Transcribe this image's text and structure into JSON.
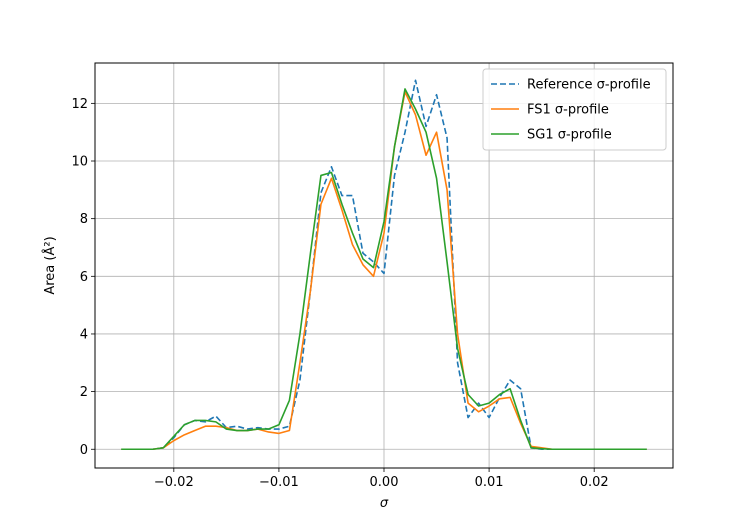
{
  "chart_data": {
    "type": "line",
    "title": "",
    "xlabel": "σ",
    "ylabel": "Area (Å²)",
    "xlim": [
      -0.0275,
      0.0275
    ],
    "ylim": [
      -0.65,
      13.4
    ],
    "grid": true,
    "legend_position": "top-right",
    "x_ticks": [
      -0.02,
      -0.01,
      0.0,
      0.01,
      0.02
    ],
    "x_tick_labels": [
      "−0.02",
      "−0.01",
      "0.00",
      "0.01",
      "0.02"
    ],
    "y_ticks": [
      0,
      2,
      4,
      6,
      8,
      10,
      12
    ],
    "y_tick_labels": [
      "0",
      "2",
      "4",
      "6",
      "8",
      "10",
      "12"
    ],
    "series": [
      {
        "name": "Reference σ-profile",
        "color": "#1f77b4",
        "style": "dashed",
        "x": [
          -0.025,
          -0.024,
          -0.023,
          -0.022,
          -0.021,
          -0.02,
          -0.019,
          -0.018,
          -0.017,
          -0.016,
          -0.015,
          -0.014,
          -0.013,
          -0.012,
          -0.011,
          -0.01,
          -0.009,
          -0.008,
          -0.007,
          -0.006,
          -0.005,
          -0.004,
          -0.003,
          -0.002,
          -0.001,
          0.0,
          0.001,
          0.002,
          0.003,
          0.004,
          0.005,
          0.006,
          0.007,
          0.008,
          0.009,
          0.01,
          0.011,
          0.012,
          0.013,
          0.014,
          0.015,
          0.016,
          0.017,
          0.018,
          0.019,
          0.02,
          0.021,
          0.022,
          0.023,
          0.024,
          0.025
        ],
        "values": [
          0,
          0,
          0,
          0,
          0.05,
          0.4,
          0.85,
          1.0,
          0.95,
          1.15,
          0.75,
          0.8,
          0.7,
          0.75,
          0.7,
          0.7,
          0.8,
          2.4,
          5.5,
          8.9,
          9.8,
          8.8,
          8.8,
          6.8,
          6.5,
          6.1,
          9.5,
          11.0,
          12.8,
          11.2,
          12.3,
          10.8,
          3.0,
          1.1,
          1.6,
          1.1,
          1.8,
          2.4,
          2.1,
          0.05,
          0,
          0,
          0,
          0,
          0,
          0,
          0,
          0,
          0,
          0,
          0
        ]
      },
      {
        "name": "FS1 σ-profile",
        "color": "#ff7f0e",
        "style": "solid",
        "x": [
          -0.025,
          -0.024,
          -0.023,
          -0.022,
          -0.021,
          -0.02,
          -0.019,
          -0.018,
          -0.017,
          -0.016,
          -0.015,
          -0.014,
          -0.013,
          -0.012,
          -0.011,
          -0.01,
          -0.009,
          -0.008,
          -0.007,
          -0.006,
          -0.005,
          -0.004,
          -0.003,
          -0.002,
          -0.001,
          0.0,
          0.001,
          0.002,
          0.003,
          0.004,
          0.005,
          0.006,
          0.007,
          0.008,
          0.009,
          0.01,
          0.011,
          0.012,
          0.013,
          0.014,
          0.015,
          0.016,
          0.017,
          0.018,
          0.019,
          0.02,
          0.021,
          0.022,
          0.023,
          0.024,
          0.025
        ],
        "values": [
          0,
          0,
          0,
          0,
          0.05,
          0.3,
          0.5,
          0.65,
          0.8,
          0.8,
          0.75,
          0.65,
          0.65,
          0.7,
          0.6,
          0.55,
          0.65,
          3.0,
          5.5,
          8.5,
          9.4,
          8.3,
          7.1,
          6.4,
          6.0,
          7.5,
          10.5,
          12.4,
          11.6,
          10.2,
          11.0,
          9.0,
          4.0,
          1.6,
          1.3,
          1.5,
          1.75,
          1.8,
          0.9,
          0.1,
          0.05,
          0,
          0,
          0,
          0,
          0,
          0,
          0,
          0,
          0,
          0
        ]
      },
      {
        "name": "SG1 σ-profile",
        "color": "#2ca02c",
        "style": "solid",
        "x": [
          -0.025,
          -0.024,
          -0.023,
          -0.022,
          -0.021,
          -0.02,
          -0.019,
          -0.018,
          -0.017,
          -0.016,
          -0.015,
          -0.014,
          -0.013,
          -0.012,
          -0.011,
          -0.01,
          -0.009,
          -0.008,
          -0.007,
          -0.006,
          -0.005,
          -0.004,
          -0.003,
          -0.002,
          -0.001,
          0.0,
          0.001,
          0.002,
          0.003,
          0.004,
          0.005,
          0.006,
          0.007,
          0.008,
          0.009,
          0.01,
          0.011,
          0.012,
          0.013,
          0.014,
          0.015,
          0.016,
          0.017,
          0.018,
          0.019,
          0.02,
          0.021,
          0.022,
          0.023,
          0.024,
          0.025
        ],
        "values": [
          0,
          0,
          0,
          0,
          0.05,
          0.45,
          0.85,
          1.0,
          1.0,
          0.95,
          0.7,
          0.65,
          0.65,
          0.7,
          0.7,
          0.85,
          1.7,
          4.0,
          6.8,
          9.5,
          9.6,
          8.5,
          7.5,
          6.6,
          6.3,
          7.9,
          10.5,
          12.5,
          11.8,
          11.0,
          9.4,
          6.5,
          3.5,
          1.9,
          1.5,
          1.6,
          1.9,
          2.1,
          1.0,
          0.05,
          0.02,
          0,
          0,
          0,
          0,
          0,
          0,
          0,
          0,
          0,
          0
        ]
      }
    ]
  }
}
